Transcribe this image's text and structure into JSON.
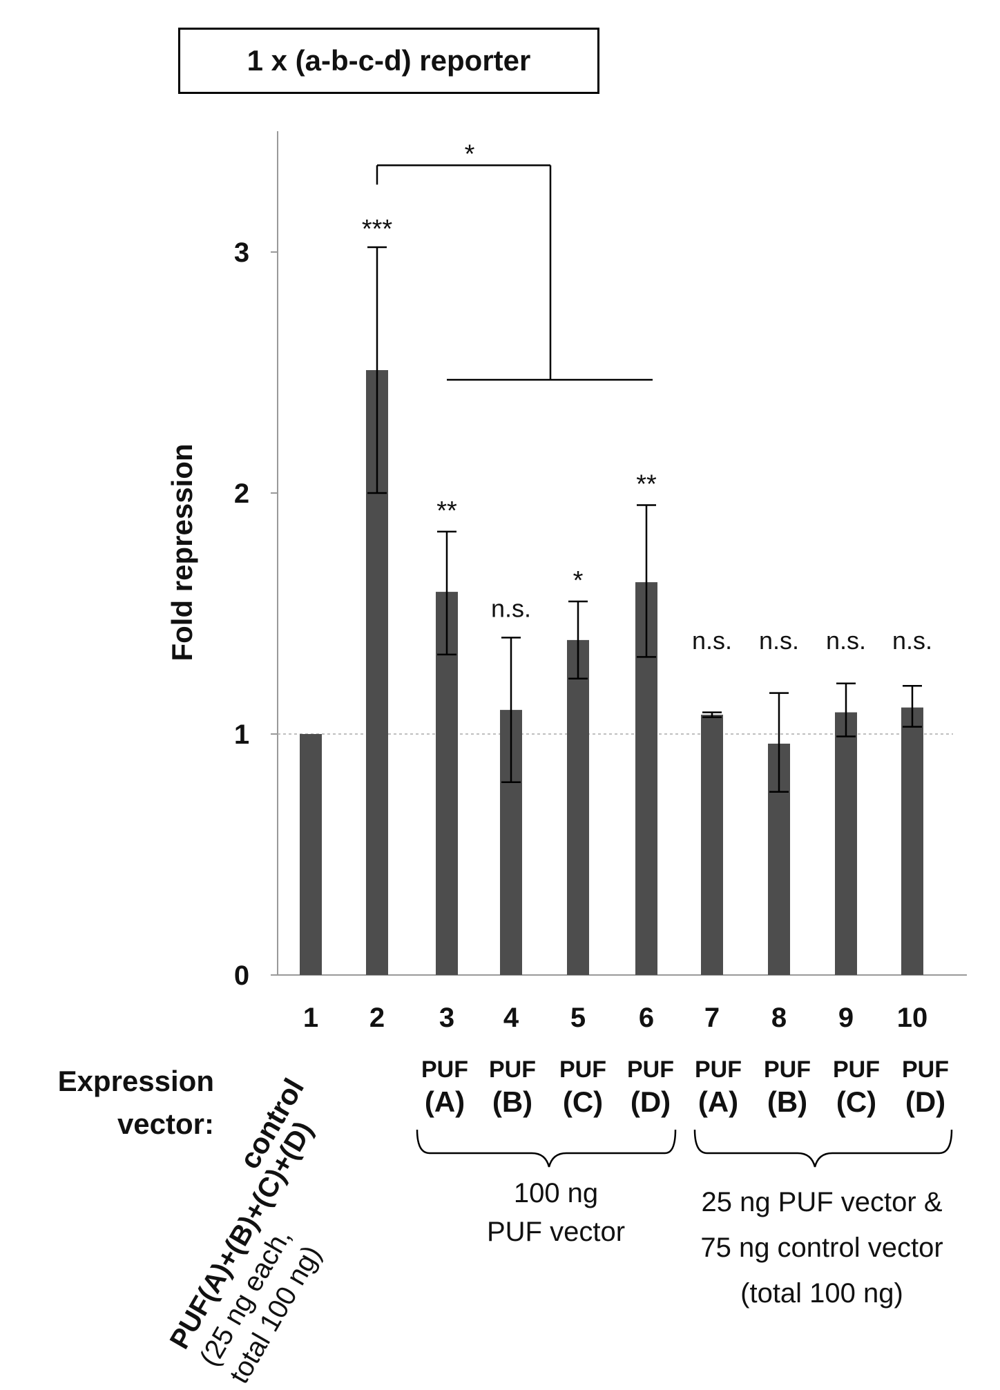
{
  "chart_data": {
    "type": "bar",
    "title": "1 x (a-b-c-d) reporter",
    "ylabel": "Fold repression",
    "xlabel": "",
    "ylim": [
      0,
      3.5
    ],
    "yticks": [
      0,
      1,
      2,
      3
    ],
    "grid": false,
    "reference_line": 1,
    "categories": [
      "1",
      "2",
      "3",
      "4",
      "5",
      "6",
      "7",
      "8",
      "9",
      "10"
    ],
    "values": [
      1.0,
      2.51,
      1.59,
      1.1,
      1.39,
      1.63,
      1.08,
      0.96,
      1.09,
      1.11
    ],
    "error_low": [
      1.0,
      2.0,
      1.33,
      0.8,
      1.23,
      1.32,
      1.07,
      0.76,
      0.99,
      1.03
    ],
    "error_high": [
      1.0,
      3.02,
      1.84,
      1.4,
      1.55,
      1.95,
      1.09,
      1.17,
      1.21,
      1.2
    ],
    "significance": [
      "",
      "***",
      "**",
      "n.s.",
      "*",
      "**",
      "n.s.",
      "n.s.",
      "n.s.",
      "n.s."
    ],
    "bracket": {
      "label": "*",
      "from_category": "2",
      "to_categories": [
        "3",
        "4",
        "5",
        "6"
      ],
      "bracket_level": 3.36,
      "group_line_level": 2.47
    }
  },
  "x_axis": {
    "row_label": [
      "Expression",
      "vector:"
    ],
    "control_label": "control",
    "pool_label": [
      "PUF(A)+(B)+(C)+(D)",
      "(25 ng each,",
      "total 100 ng)"
    ],
    "puf_items": [
      {
        "name": "PUF",
        "variant": "(A)"
      },
      {
        "name": "PUF",
        "variant": "(B)"
      },
      {
        "name": "PUF",
        "variant": "(C)"
      },
      {
        "name": "PUF",
        "variant": "(D)"
      },
      {
        "name": "PUF",
        "variant": "(A)"
      },
      {
        "name": "PUF",
        "variant": "(B)"
      },
      {
        "name": "PUF",
        "variant": "(C)"
      },
      {
        "name": "PUF",
        "variant": "(D)"
      }
    ],
    "group_100ng": [
      "100 ng",
      "PUF vector"
    ],
    "group_25ng": [
      "25 ng PUF vector &",
      "75 ng control vector",
      "(total 100 ng)"
    ]
  },
  "colors": {
    "bar": "#4d4d4d",
    "axis": "#999999",
    "ink": "#111111",
    "reference_line": "#aaaaaa"
  }
}
